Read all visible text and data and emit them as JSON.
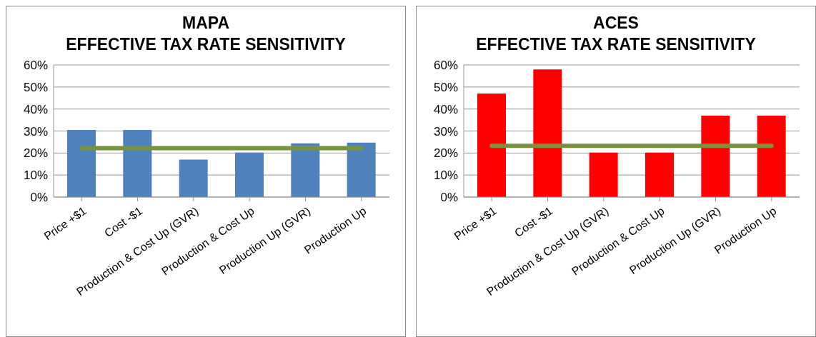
{
  "chart_data": [
    {
      "type": "bar",
      "title": "MAPA",
      "subtitle": "EFFECTIVE TAX RATE SENSITIVITY",
      "categories": [
        "Price +$1",
        "Cost -$1",
        "Production & Cost Up (GVR)",
        "Production & Cost Up",
        "Production Up (GVR)",
        "Production Up"
      ],
      "series": [
        {
          "color": "#4f81bd",
          "values": [
            30.5,
            30.5,
            17,
            20.2,
            24.4,
            24.7
          ]
        },
        {
          "type": "line",
          "color": "#77933c",
          "marker": "none",
          "values": [
            22.2,
            22.2,
            22.2,
            22.2,
            22.2,
            22.2
          ]
        }
      ],
      "ylim": [
        0,
        60
      ],
      "yticks": [
        {
          "value": 0,
          "label": "0%"
        },
        {
          "value": 10,
          "label": "10%"
        },
        {
          "value": 20,
          "label": "20%"
        },
        {
          "value": 30,
          "label": "30%"
        },
        {
          "value": 40,
          "label": "40%"
        },
        {
          "value": 50,
          "label": "50%"
        },
        {
          "value": 60,
          "label": "60%"
        }
      ],
      "grid": "y",
      "legend": false
    },
    {
      "type": "bar",
      "title": "ACES",
      "subtitle": "EFFECTIVE TAX RATE SENSITIVITY",
      "categories": [
        "Price +$1",
        "Cost -$1",
        "Production & Cost Up (GVR)",
        "Production & Cost Up",
        "Production Up (GVR)",
        "Production Up"
      ],
      "series": [
        {
          "color": "#ff0000",
          "values": [
            47,
            58,
            20.2,
            20.2,
            37,
            37
          ]
        },
        {
          "type": "line",
          "color": "#77933c",
          "marker": "none",
          "values": [
            23.3,
            23.3,
            23.3,
            23.3,
            23.3,
            23.3
          ]
        }
      ],
      "ylim": [
        0,
        60
      ],
      "yticks": [
        {
          "value": 0,
          "label": "0%"
        },
        {
          "value": 10,
          "label": "10%"
        },
        {
          "value": 20,
          "label": "20%"
        },
        {
          "value": 30,
          "label": "30%"
        },
        {
          "value": 40,
          "label": "40%"
        },
        {
          "value": 50,
          "label": "50%"
        },
        {
          "value": 60,
          "label": "60%"
        }
      ],
      "grid": "y",
      "legend": false
    }
  ]
}
